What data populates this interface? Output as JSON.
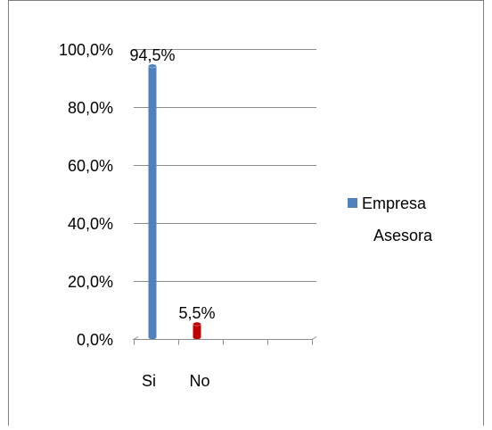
{
  "chart_data": {
    "type": "bar",
    "title": "",
    "xlabel": "",
    "ylabel": "",
    "categories": [
      "Si",
      "No"
    ],
    "series": [
      {
        "name": "Empresa Asesora",
        "values": [
          94.5,
          5.5
        ],
        "data_labels": [
          "94,5%",
          "5,5%"
        ],
        "bar_colors": [
          "#4f81bd",
          "#c00000"
        ]
      }
    ],
    "ylim": [
      0,
      100
    ],
    "yticks": [
      0,
      20,
      40,
      60,
      80,
      100
    ],
    "ytick_labels": [
      "0,0%",
      "20,0%",
      "40,0%",
      "60,0%",
      "80,0%",
      "100,0%"
    ],
    "grid": true,
    "legend": {
      "position": "right",
      "entries": [
        "Empresa Asesora"
      ],
      "lines": [
        "Empresa",
        "Asesora"
      ]
    }
  },
  "colors": {
    "grid": "#8c8c8c",
    "axis": "#8c8c8c",
    "frame": "#7f7f7f"
  }
}
